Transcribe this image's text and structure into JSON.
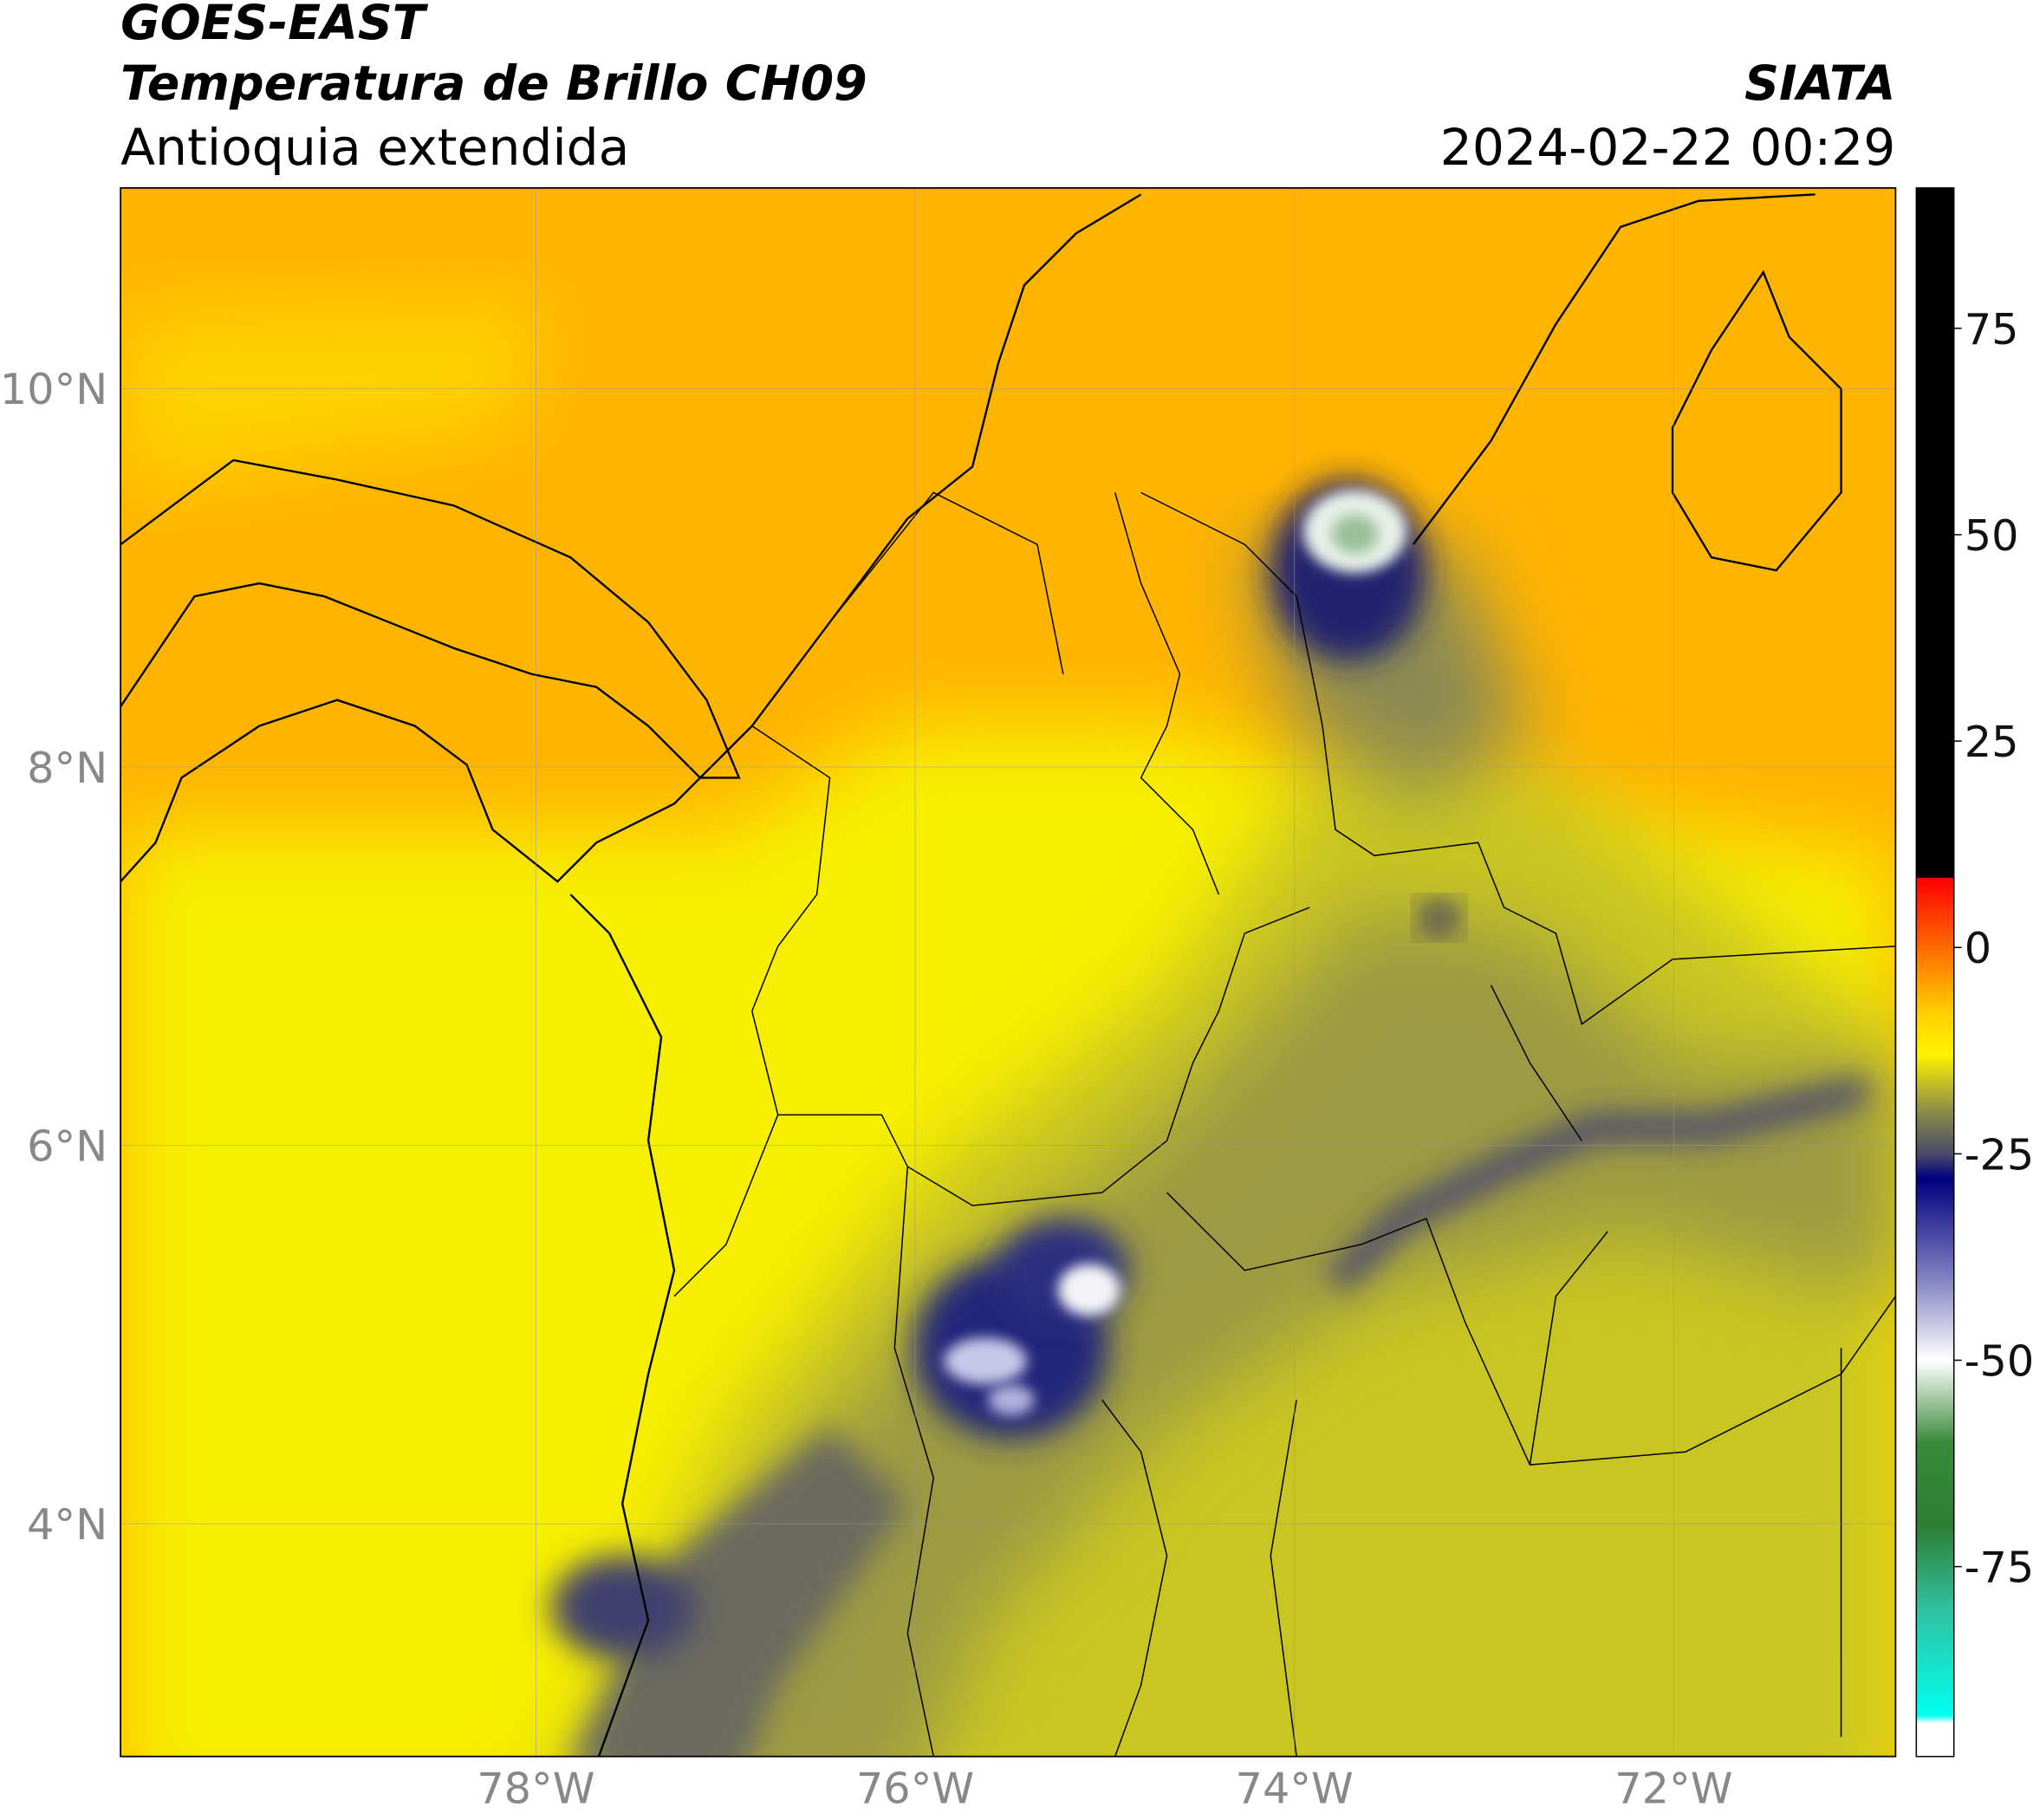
{
  "header": {
    "title": "GOES-EAST",
    "product": "Temperatura de Brillo CH09",
    "region": "Antioquia extendida",
    "source": "SIATA",
    "datetime": "2024-02-22 00:29"
  },
  "map": {
    "xlim": [
      -80.19,
      -70.83
    ],
    "ylim": [
      2.77,
      11.06
    ],
    "xticks": [
      {
        "value": -78,
        "label": "78°W"
      },
      {
        "value": -76,
        "label": "76°W"
      },
      {
        "value": -74,
        "label": "74°W"
      },
      {
        "value": -72,
        "label": "72°W"
      }
    ],
    "yticks": [
      {
        "value": 10,
        "label": "10°N"
      },
      {
        "value": 8,
        "label": "8°N"
      },
      {
        "value": 6,
        "label": "6°N"
      },
      {
        "value": 4,
        "label": "4°N"
      }
    ],
    "grid": true
  },
  "colorbar": {
    "lim": [
      -98,
      92
    ],
    "ticks": [
      75,
      50,
      25,
      0,
      -25,
      -50,
      -75
    ],
    "stops": [
      [
        92,
        "#000000"
      ],
      [
        8.5,
        "#000000"
      ],
      [
        8.4,
        "#ff0000"
      ],
      [
        0,
        "#ff6a00"
      ],
      [
        -8,
        "#ffd000"
      ],
      [
        -13,
        "#fff200"
      ],
      [
        -20,
        "#8a8a4a"
      ],
      [
        -25,
        "#4a4a6a"
      ],
      [
        -28,
        "#000080"
      ],
      [
        -40,
        "#8080c0"
      ],
      [
        -50,
        "#ffffff"
      ],
      [
        -60,
        "#3a8a3a"
      ],
      [
        -70,
        "#2e7d32"
      ],
      [
        -80,
        "#30c0a0"
      ],
      [
        -93,
        "#00ffee"
      ],
      [
        -94,
        "#ffffff"
      ],
      [
        -98,
        "#ffffff"
      ]
    ]
  }
}
